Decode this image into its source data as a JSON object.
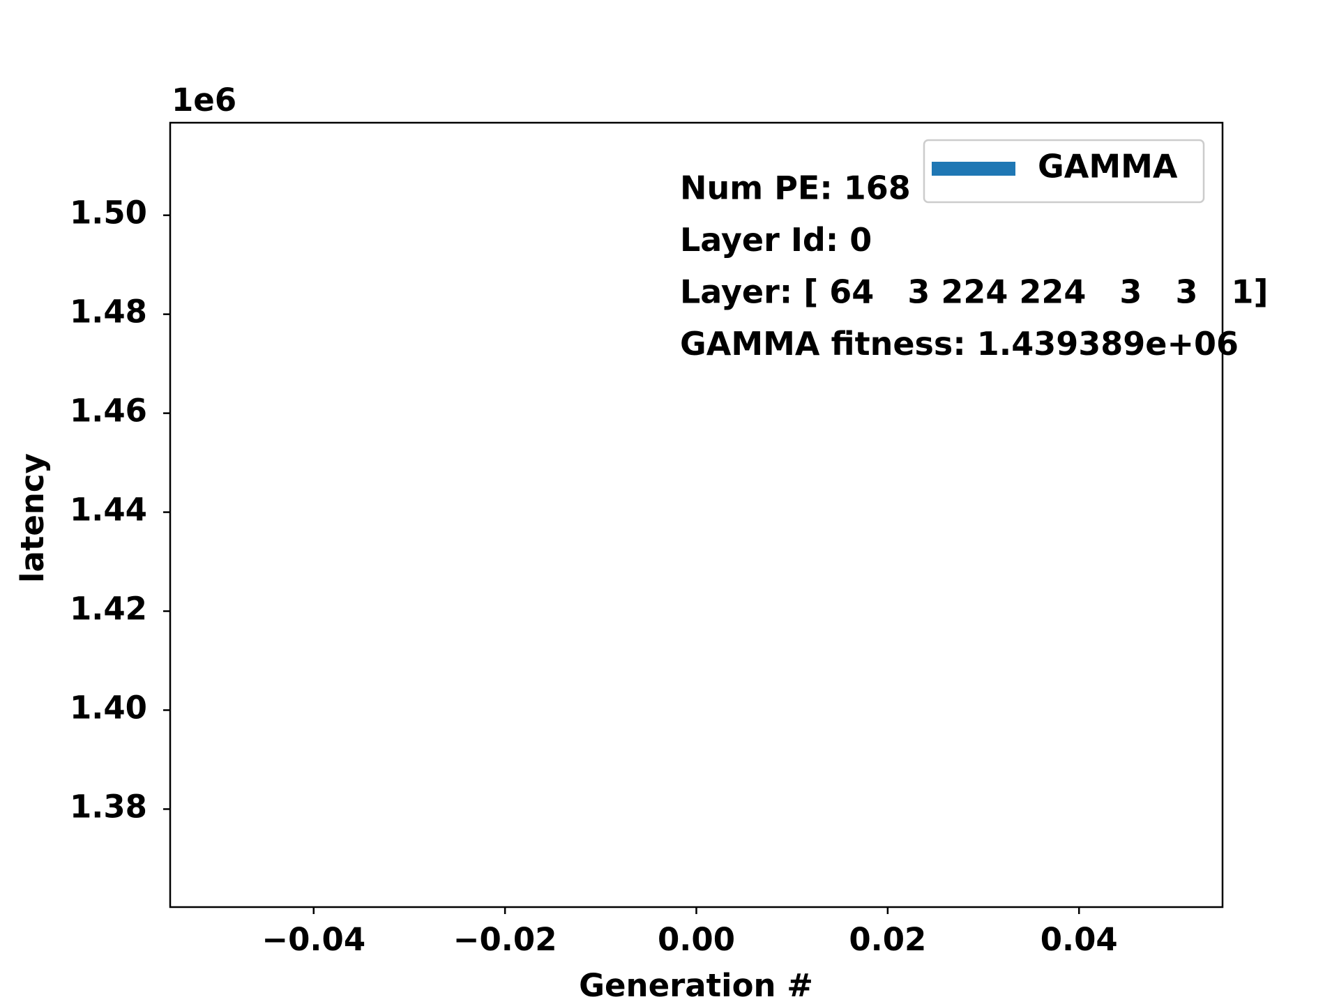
{
  "chart_data": {
    "type": "line",
    "x_label": "Generation #",
    "y_label": "latency",
    "y_offset_label": "1e6",
    "x": [
      0
    ],
    "series": [
      {
        "name": "GAMMA",
        "color": "#1f77b4",
        "values": [
          1439389
        ]
      }
    ],
    "xlim": [
      -0.055,
      0.055
    ],
    "xticks": [
      {
        "value": -0.04,
        "label": "−0.04"
      },
      {
        "value": -0.02,
        "label": "−0.02"
      },
      {
        "value": 0,
        "label": "0.00"
      },
      0.02,
      0.04
    ],
    "ylim": [
      1360200,
      1518700
    ],
    "yticks": [
      {
        "value": 1380000,
        "label": "1.38"
      },
      {
        "value": 1400000,
        "label": "1.40"
      },
      {
        "value": 1420000,
        "label": "1.42"
      },
      {
        "value": 1440000,
        "label": "1.44"
      },
      {
        "value": 1460000,
        "label": "1.46"
      },
      {
        "value": 1480000,
        "label": "1.48"
      },
      {
        "value": 1500000,
        "label": "1.50"
      }
    ],
    "annotations": [
      "Num PE: 168",
      "Layer Id: 0",
      "Layer: [ 64   3 224 224   3   3   1]",
      "GAMMA fitness: 1.439389e+06"
    ],
    "legend": "upper right",
    "grid": false
  }
}
